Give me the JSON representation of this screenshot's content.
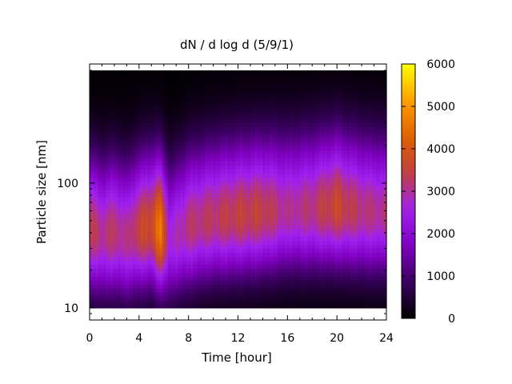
{
  "chart_data": {
    "type": "heatmap",
    "title": "dN / d log d (5/9/1)",
    "xlabel": "Time [hour]",
    "ylabel": "Particle size [nm]",
    "x_range": [
      0,
      24
    ],
    "y_range": [
      8,
      900
    ],
    "y_scale": "log",
    "x_ticks": [
      "0",
      "4",
      "8",
      "12",
      "16",
      "20",
      "24"
    ],
    "x_tick_values": [
      0,
      4,
      8,
      12,
      16,
      20,
      24
    ],
    "y_ticks": [
      "10",
      "100"
    ],
    "y_tick_values": [
      10,
      100
    ],
    "colorbar": {
      "range": [
        0,
        6000
      ],
      "ticks": [
        "0",
        "1000",
        "2000",
        "3000",
        "4000",
        "5000",
        "6000"
      ],
      "tick_values": [
        0,
        1000,
        2000,
        3000,
        4000,
        5000,
        6000
      ],
      "palette": [
        "#000000",
        "#3a0060",
        "#8000c0",
        "#a020f0",
        "#c04040",
        "#e06000",
        "#ff9f00",
        "#ffff00"
      ]
    },
    "size_range_nm": [
      10,
      800
    ],
    "peak_size_by_hour": [
      [
        0,
        42
      ],
      [
        1,
        38
      ],
      [
        2,
        40
      ],
      [
        3,
        36
      ],
      [
        4,
        42
      ],
      [
        5,
        45
      ],
      [
        5.7,
        42
      ],
      [
        6.5,
        35
      ],
      [
        8,
        45
      ],
      [
        10,
        52
      ],
      [
        12,
        55
      ],
      [
        14,
        58
      ],
      [
        16,
        60
      ],
      [
        18,
        62
      ],
      [
        20,
        65
      ],
      [
        21,
        62
      ],
      [
        22,
        60
      ],
      [
        23,
        58
      ]
    ],
    "peak_concentration_by_hour": [
      [
        0,
        3600
      ],
      [
        1,
        3300
      ],
      [
        2,
        3500
      ],
      [
        3,
        3200
      ],
      [
        4,
        3800
      ],
      [
        5,
        4000
      ],
      [
        5.7,
        5000
      ],
      [
        6.5,
        2800
      ],
      [
        8,
        3400
      ],
      [
        10,
        3500
      ],
      [
        12,
        3700
      ],
      [
        14,
        3700
      ],
      [
        16,
        3200
      ],
      [
        18,
        3400
      ],
      [
        20,
        3900
      ],
      [
        21,
        3600
      ],
      [
        22,
        3400
      ],
      [
        23,
        3300
      ]
    ]
  }
}
